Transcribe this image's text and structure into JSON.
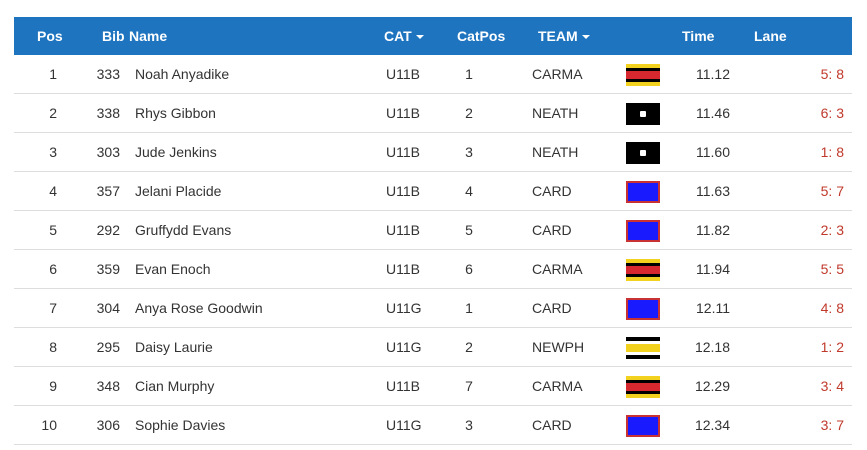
{
  "header": {
    "pos": "Pos",
    "bib": "Bib",
    "name": "Name",
    "cat": "CAT",
    "catpos": "CatPos",
    "team": "TEAM",
    "time": "Time",
    "lane": "Lane"
  },
  "colors": {
    "header_bg": "#1f74bf",
    "lane_text": "#c0392b"
  },
  "rows": [
    {
      "pos": "1",
      "bib": "333",
      "name": "Noah Anyadike",
      "cat": "U11B",
      "catpos": "1",
      "team": "CARMA",
      "flag": "carma-flag-icon",
      "time": "11.12",
      "lane": "5: 8"
    },
    {
      "pos": "2",
      "bib": "338",
      "name": "Rhys Gibbon",
      "cat": "U11B",
      "catpos": "2",
      "team": "NEATH",
      "flag": "neath-flag-icon",
      "time": "11.46",
      "lane": "6: 3"
    },
    {
      "pos": "3",
      "bib": "303",
      "name": "Jude Jenkins",
      "cat": "U11B",
      "catpos": "3",
      "team": "NEATH",
      "flag": "neath-flag-icon",
      "time": "11.60",
      "lane": "1: 8"
    },
    {
      "pos": "4",
      "bib": "357",
      "name": "Jelani Placide",
      "cat": "U11B",
      "catpos": "4",
      "team": "CARD",
      "flag": "card-flag-icon",
      "time": "11.63",
      "lane": "5: 7"
    },
    {
      "pos": "5",
      "bib": "292",
      "name": "Gruffydd Evans",
      "cat": "U11B",
      "catpos": "5",
      "team": "CARD",
      "flag": "card-flag-icon",
      "time": "11.82",
      "lane": "2: 3"
    },
    {
      "pos": "6",
      "bib": "359",
      "name": "Evan Enoch",
      "cat": "U11B",
      "catpos": "6",
      "team": "CARMA",
      "flag": "carma-flag-icon",
      "time": "11.94",
      "lane": "5: 5"
    },
    {
      "pos": "7",
      "bib": "304",
      "name": "Anya Rose Goodwin",
      "cat": "U11G",
      "catpos": "1",
      "team": "CARD",
      "flag": "card-flag-icon",
      "time": "12.11",
      "lane": "4: 8"
    },
    {
      "pos": "8",
      "bib": "295",
      "name": "Daisy Laurie",
      "cat": "U11G",
      "catpos": "2",
      "team": "NEWPH",
      "flag": "newph-flag-icon",
      "time": "12.18",
      "lane": "1: 2"
    },
    {
      "pos": "9",
      "bib": "348",
      "name": "Cian Murphy",
      "cat": "U11B",
      "catpos": "7",
      "team": "CARMA",
      "flag": "carma-flag-icon",
      "time": "12.29",
      "lane": "3: 4"
    },
    {
      "pos": "10",
      "bib": "306",
      "name": "Sophie Davies",
      "cat": "U11G",
      "catpos": "3",
      "team": "CARD",
      "flag": "card-flag-icon",
      "time": "12.34",
      "lane": "3: 7"
    }
  ]
}
